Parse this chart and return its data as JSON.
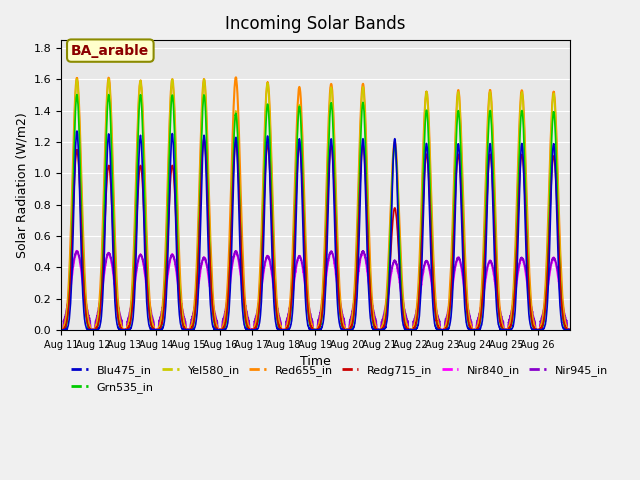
{
  "title": "Incoming Solar Bands",
  "xlabel": "Time",
  "ylabel": "Solar Radiation (W/m2)",
  "annotation": "BA_arable",
  "ylim": [
    0.0,
    1.85
  ],
  "yticks": [
    0.0,
    0.2,
    0.4,
    0.6,
    0.8,
    1.0,
    1.2,
    1.4,
    1.6,
    1.8
  ],
  "xticklabels": [
    "Aug 11",
    "Aug 12",
    "Aug 13",
    "Aug 14",
    "Aug 15",
    "Aug 16",
    "Aug 17",
    "Aug 18",
    "Aug 19",
    "Aug 20",
    "Aug 21",
    "Aug 22",
    "Aug 23",
    "Aug 24",
    "Aug 25",
    "Aug 26"
  ],
  "lines": {
    "Blu475_in": {
      "color": "#0000cc",
      "lw": 1.2
    },
    "Grn535_in": {
      "color": "#00cc00",
      "lw": 1.2
    },
    "Yel580_in": {
      "color": "#cccc00",
      "lw": 1.2
    },
    "Red655_in": {
      "color": "#ff8800",
      "lw": 1.5
    },
    "Redg715_in": {
      "color": "#cc0000",
      "lw": 1.2
    },
    "Nir840_in": {
      "color": "#ff00ff",
      "lw": 1.5
    },
    "Nir945_in": {
      "color": "#8800cc",
      "lw": 1.2
    }
  },
  "num_days": 16,
  "points_per_day": 200,
  "blu475_peaks": [
    1.27,
    1.25,
    1.24,
    1.25,
    1.24,
    1.23,
    1.24,
    1.22,
    1.22,
    1.22,
    1.22,
    1.19,
    1.19,
    1.19,
    1.19,
    1.19
  ],
  "nir840_peaks": [
    0.5,
    0.49,
    0.48,
    0.48,
    0.46,
    0.5,
    0.47,
    0.47,
    0.5,
    0.5,
    0.44,
    0.44,
    0.46,
    0.44,
    0.46,
    0.46
  ],
  "nir945_peaks": [
    0.5,
    0.49,
    0.48,
    0.48,
    0.46,
    0.5,
    0.47,
    0.47,
    0.5,
    0.5,
    0.44,
    0.44,
    0.46,
    0.44,
    0.46,
    0.46
  ],
  "red655_peaks": [
    1.61,
    1.61,
    1.59,
    1.6,
    1.6,
    1.61,
    1.58,
    1.55,
    1.57,
    1.57,
    1.2,
    1.52,
    1.53,
    1.53,
    1.53,
    1.52
  ],
  "yel580_peaks": [
    1.6,
    1.6,
    1.59,
    1.6,
    1.6,
    1.4,
    1.58,
    1.44,
    1.55,
    1.55,
    1.19,
    1.52,
    1.52,
    1.52,
    1.52,
    1.51
  ],
  "grn535_peaks": [
    1.5,
    1.5,
    1.5,
    1.5,
    1.5,
    1.38,
    1.44,
    1.43,
    1.45,
    1.45,
    1.18,
    1.4,
    1.4,
    1.4,
    1.4,
    1.39
  ],
  "redg715_peaks": [
    1.15,
    1.05,
    1.05,
    1.05,
    1.22,
    1.2,
    1.18,
    1.18,
    1.18,
    1.18,
    0.78,
    1.12,
    1.12,
    1.12,
    1.12,
    1.11
  ]
}
